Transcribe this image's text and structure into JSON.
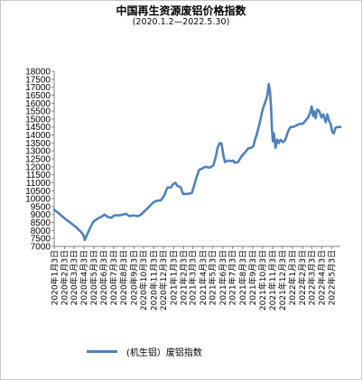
{
  "chart_data": {
    "type": "line",
    "title": "中国再生资源废铝价格指数",
    "subtitle": "(2020.1.2—2022.5.30)",
    "ylim": [
      7000,
      18000
    ],
    "yticks": [
      7000,
      7500,
      8000,
      8500,
      9000,
      9500,
      10000,
      10500,
      11000,
      11500,
      12000,
      12500,
      13000,
      13500,
      14000,
      14500,
      15000,
      15500,
      16000,
      16500,
      17000,
      17500,
      18000
    ],
    "xticks": [
      "2020年1月3日",
      "2020年2月3日",
      "2020年3月3日",
      "2020年4月3日",
      "2020年5月3日",
      "2020年6月3日",
      "2020年7月3日",
      "2020年8月3日",
      "2020年9月3日",
      "2020年10月3日",
      "2020年11月3日",
      "2020年12月3日",
      "2021年1月3日",
      "2021年2月3日",
      "2021年3月3日",
      "2021年4月3日",
      "2021年5月3日",
      "2021年6月3日",
      "2021年7月3日",
      "2021年8月3日",
      "2021年9月3日",
      "2021年10月3日",
      "2021年11月3日",
      "2021年12月3日",
      "2022年1月3日",
      "2022年2月3日",
      "2022年3月3日",
      "2022年4月3日",
      "2022年5月3日"
    ],
    "grid": false,
    "legend_position": "bottom",
    "color": "#4f81bd",
    "series": [
      {
        "name": "(机生铝）废铝指数",
        "points": [
          [
            "2020-01-02",
            9300
          ],
          [
            "2020-01-15",
            9100
          ],
          [
            "2020-02-01",
            8800
          ],
          [
            "2020-02-20",
            8500
          ],
          [
            "2020-03-10",
            8200
          ],
          [
            "2020-03-25",
            7900
          ],
          [
            "2020-04-01",
            7700
          ],
          [
            "2020-04-05",
            7400
          ],
          [
            "2020-04-10",
            7650
          ],
          [
            "2020-04-20",
            8100
          ],
          [
            "2020-05-01",
            8550
          ],
          [
            "2020-05-15",
            8750
          ],
          [
            "2020-05-25",
            8850
          ],
          [
            "2020-06-05",
            9000
          ],
          [
            "2020-06-15",
            8850
          ],
          [
            "2020-06-25",
            8800
          ],
          [
            "2020-07-05",
            8950
          ],
          [
            "2020-07-20",
            8950
          ],
          [
            "2020-08-01",
            9000
          ],
          [
            "2020-08-10",
            9050
          ],
          [
            "2020-08-20",
            8900
          ],
          [
            "2020-09-01",
            8950
          ],
          [
            "2020-09-15",
            8900
          ],
          [
            "2020-09-25",
            9000
          ],
          [
            "2020-10-10",
            9300
          ],
          [
            "2020-10-20",
            9500
          ],
          [
            "2020-11-01",
            9750
          ],
          [
            "2020-11-10",
            9850
          ],
          [
            "2020-11-25",
            9900
          ],
          [
            "2020-12-05",
            10200
          ],
          [
            "2020-12-15",
            10700
          ],
          [
            "2020-12-25",
            10700
          ],
          [
            "2021-01-01",
            10900
          ],
          [
            "2021-01-08",
            11000
          ],
          [
            "2021-01-15",
            10800
          ],
          [
            "2021-01-25",
            10700
          ],
          [
            "2021-02-01",
            10300
          ],
          [
            "2021-02-15",
            10300
          ],
          [
            "2021-02-28",
            10350
          ],
          [
            "2021-03-05",
            10700
          ],
          [
            "2021-03-15",
            11400
          ],
          [
            "2021-03-22",
            11800
          ],
          [
            "2021-04-01",
            11900
          ],
          [
            "2021-04-10",
            12000
          ],
          [
            "2021-04-25",
            11950
          ],
          [
            "2021-05-05",
            12100
          ],
          [
            "2021-05-12",
            12600
          ],
          [
            "2021-05-18",
            13200
          ],
          [
            "2021-05-25",
            13500
          ],
          [
            "2021-05-30",
            13450
          ],
          [
            "2021-06-05",
            12700
          ],
          [
            "2021-06-10",
            12300
          ],
          [
            "2021-06-20",
            12400
          ],
          [
            "2021-06-30",
            12350
          ],
          [
            "2021-07-05",
            12400
          ],
          [
            "2021-07-10",
            12250
          ],
          [
            "2021-07-20",
            12300
          ],
          [
            "2021-07-30",
            12650
          ],
          [
            "2021-08-10",
            12900
          ],
          [
            "2021-08-20",
            13150
          ],
          [
            "2021-08-30",
            13200
          ],
          [
            "2021-09-05",
            13300
          ],
          [
            "2021-09-10",
            13700
          ],
          [
            "2021-09-15",
            14000
          ],
          [
            "2021-09-25",
            14800
          ],
          [
            "2021-10-01",
            15400
          ],
          [
            "2021-10-05",
            15700
          ],
          [
            "2021-10-12",
            16100
          ],
          [
            "2021-10-18",
            16500
          ],
          [
            "2021-10-22",
            17200
          ],
          [
            "2021-10-26",
            16700
          ],
          [
            "2021-10-29",
            15800
          ],
          [
            "2021-11-01",
            14300
          ],
          [
            "2021-11-04",
            13600
          ],
          [
            "2021-11-07",
            14100
          ],
          [
            "2021-11-12",
            13200
          ],
          [
            "2021-11-17",
            13700
          ],
          [
            "2021-11-22",
            13500
          ],
          [
            "2021-11-27",
            13700
          ],
          [
            "2021-12-05",
            13550
          ],
          [
            "2021-12-12",
            13700
          ],
          [
            "2021-12-20",
            14200
          ],
          [
            "2021-12-28",
            14500
          ],
          [
            "2022-01-05",
            14500
          ],
          [
            "2022-01-15",
            14600
          ],
          [
            "2022-01-25",
            14700
          ],
          [
            "2022-02-03",
            14700
          ],
          [
            "2022-02-12",
            14900
          ],
          [
            "2022-02-20",
            15100
          ],
          [
            "2022-02-26",
            15400
          ],
          [
            "2022-03-03",
            15800
          ],
          [
            "2022-03-07",
            15200
          ],
          [
            "2022-03-10",
            15500
          ],
          [
            "2022-03-15",
            15050
          ],
          [
            "2022-03-20",
            15600
          ],
          [
            "2022-03-26",
            15500
          ],
          [
            "2022-04-02",
            15100
          ],
          [
            "2022-04-08",
            15300
          ],
          [
            "2022-04-15",
            14800
          ],
          [
            "2022-04-20",
            15300
          ],
          [
            "2022-04-25",
            14900
          ],
          [
            "2022-04-30",
            14700
          ],
          [
            "2022-05-05",
            14200
          ],
          [
            "2022-05-10",
            14100
          ],
          [
            "2022-05-15",
            14450
          ],
          [
            "2022-05-22",
            14500
          ],
          [
            "2022-05-30",
            14500
          ]
        ]
      }
    ]
  }
}
